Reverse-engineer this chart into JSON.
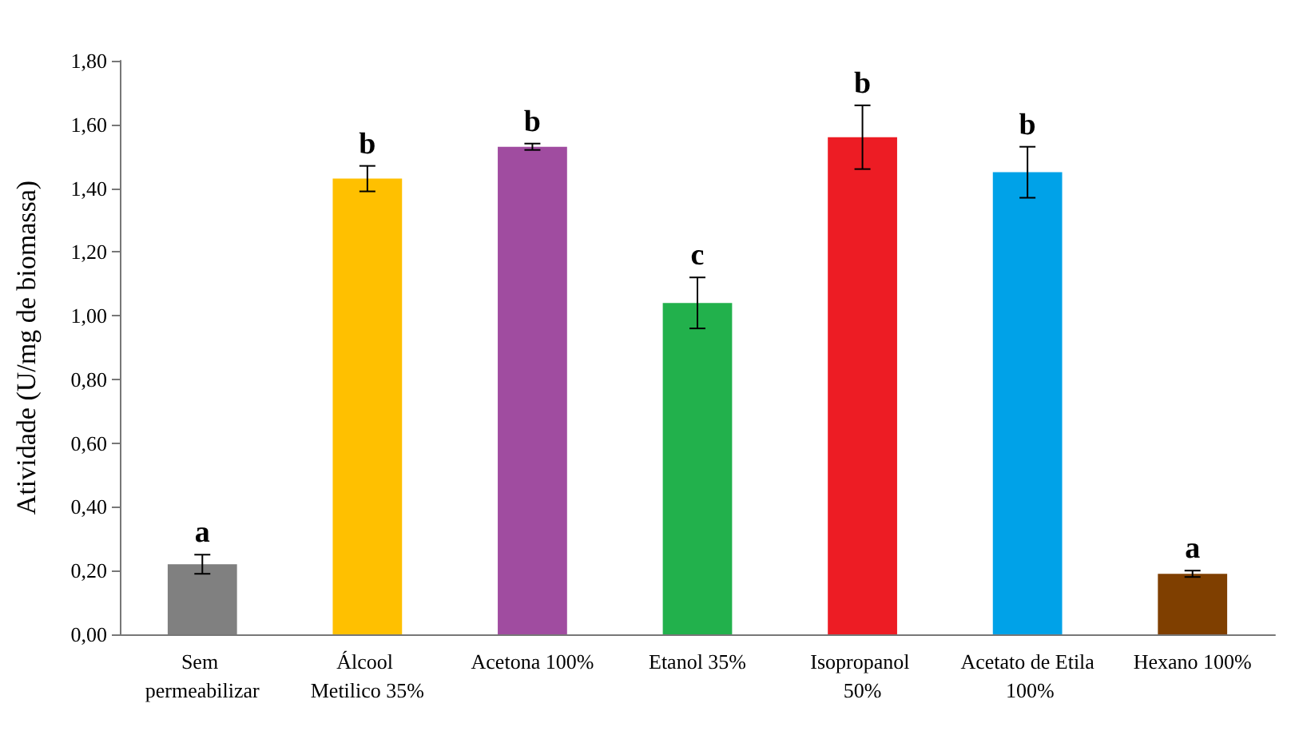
{
  "chart_data": {
    "type": "bar",
    "ylabel": "Atividade (U/mg de biomassa)",
    "categories": [
      "Sem permeabilizar",
      "Álcool Metilico 35%",
      "Acetona 100%",
      "Etanol 35%",
      "Isopropanol 50%",
      "Acetato de Etila 100%",
      "Hexano 100%"
    ],
    "values": [
      0.22,
      1.43,
      1.53,
      1.04,
      1.56,
      1.45,
      0.19
    ],
    "errors": [
      0.03,
      0.04,
      0.01,
      0.08,
      0.1,
      0.08,
      0.01
    ],
    "colors": [
      "#808080",
      "#ffc000",
      "#a04ca0",
      "#22b14c",
      "#ed1c24",
      "#00a2e8",
      "#7f3f00"
    ],
    "ylim": [
      0,
      1.8
    ],
    "yticks": [
      {
        "value": 0,
        "label": "0,00"
      },
      {
        "value": 0.2,
        "label": "0,20"
      },
      {
        "value": 0.4,
        "label": "0,40"
      },
      {
        "value": 0.6,
        "label": "0,60"
      },
      {
        "value": 0.8,
        "label": "0,80"
      },
      {
        "value": 1,
        "label": "1,00"
      },
      {
        "value": 1.2,
        "label": "1,20"
      },
      {
        "value": 1.4,
        "label": "1,40"
      },
      {
        "value": 1.6,
        "label": "1,60"
      },
      {
        "value": 1.8,
        "label": "1,80"
      }
    ],
    "annotations": [
      {
        "text": "a",
        "x": "Sem permeabilizar",
        "y": 0.25
      },
      {
        "text": "b",
        "x": "Álcool Metilico 35%",
        "y": 1.47
      },
      {
        "text": "b",
        "x": "Acetona 100%",
        "y": 1.54
      },
      {
        "text": "c",
        "x": "Etanol 35%",
        "y": 1.12
      },
      {
        "text": "b",
        "x": "Isopropanol 50%",
        "y": 1.66
      },
      {
        "text": "b",
        "x": "Acetato de Etila 100%",
        "y": 1.53
      },
      {
        "text": "a",
        "x": "Hexano 100%",
        "y": 0.2
      }
    ],
    "grid": false
  }
}
